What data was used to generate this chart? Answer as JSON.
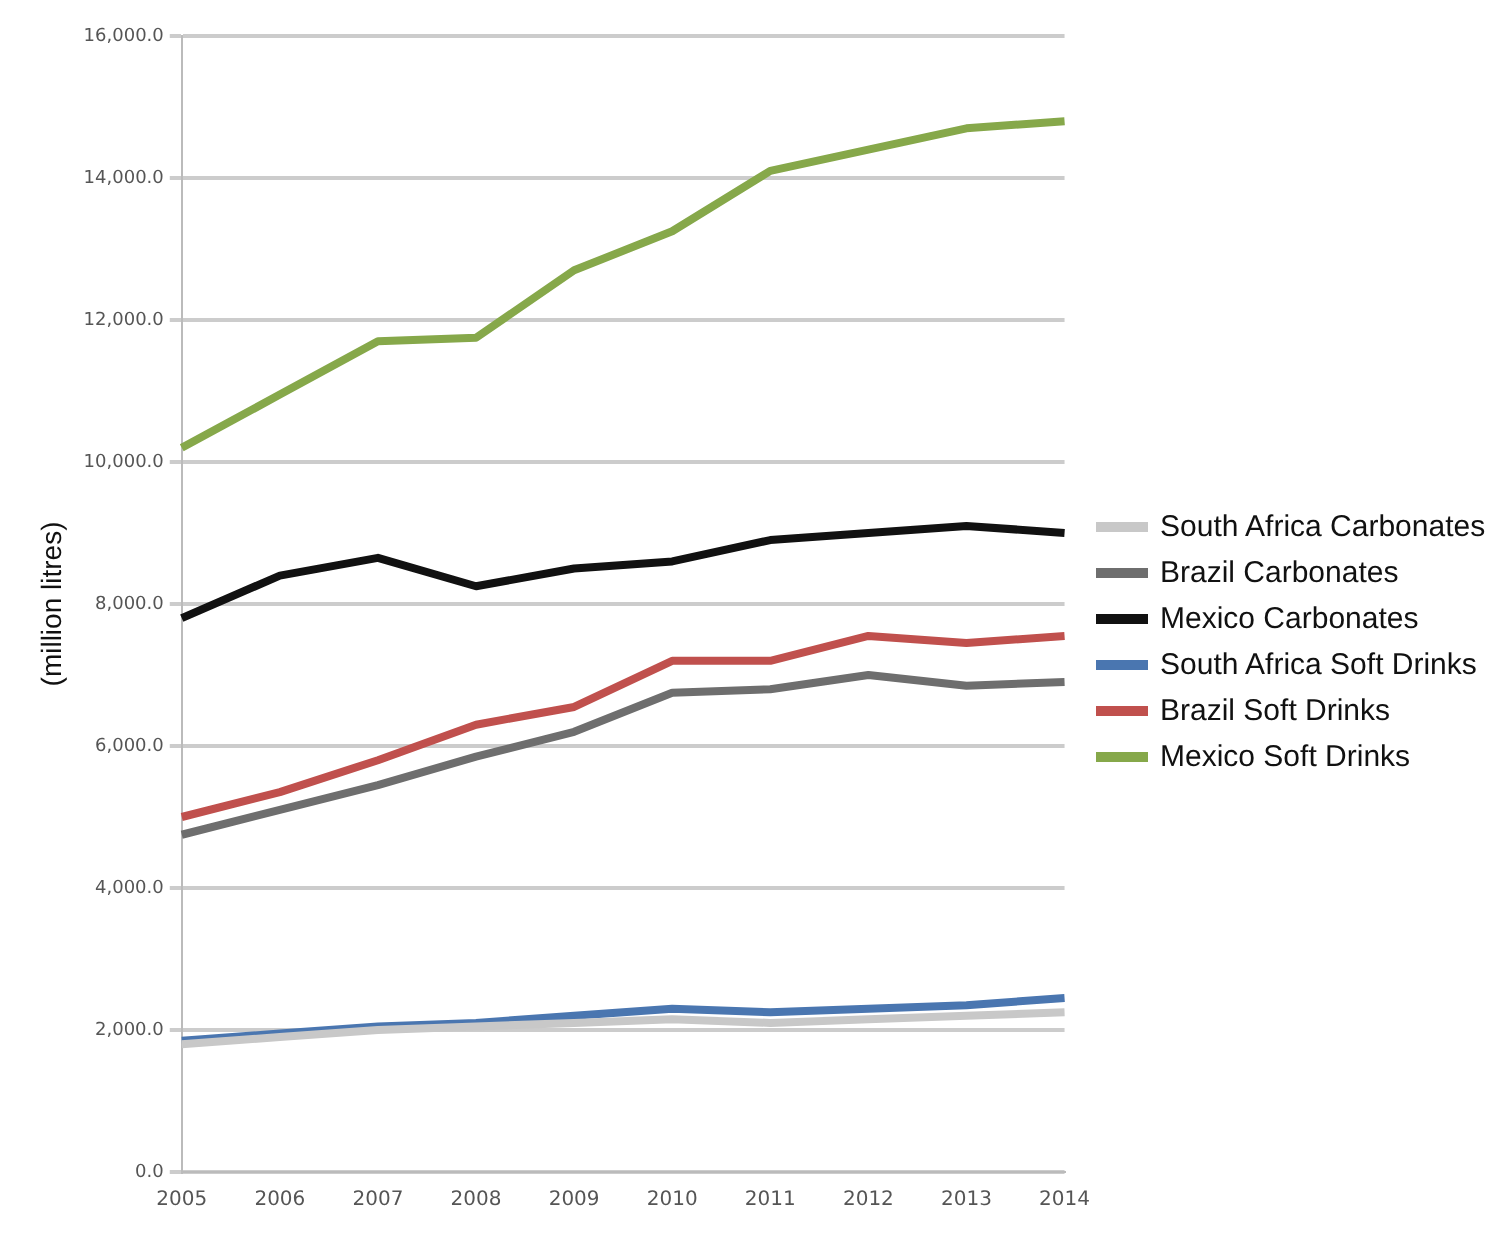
{
  "chart_data": {
    "type": "line",
    "ylabel": "(million litres)",
    "categories": [
      "2005",
      "2006",
      "2007",
      "2008",
      "2009",
      "2010",
      "2011",
      "2012",
      "2013",
      "2014"
    ],
    "series": [
      {
        "name": "South Africa Carbonates",
        "color": "#c8c8c8",
        "values": [
          1800,
          1900,
          2000,
          2050,
          2100,
          2150,
          2100,
          2150,
          2200,
          2250
        ]
      },
      {
        "name": "Brazil Carbonates",
        "color": "#6e6e6e",
        "values": [
          4750,
          5100,
          5450,
          5850,
          6200,
          6750,
          6800,
          7000,
          6850,
          6900
        ]
      },
      {
        "name": "Mexico Carbonates",
        "color": "#111111",
        "values": [
          7800,
          8400,
          8650,
          8250,
          8500,
          8600,
          8900,
          9000,
          9100,
          9000
        ]
      },
      {
        "name": "South Africa Soft Drinks",
        "color": "#4a76b0",
        "values": [
          1850,
          1950,
          2050,
          2100,
          2200,
          2300,
          2250,
          2300,
          2350,
          2450
        ]
      },
      {
        "name": "Brazil Soft Drinks",
        "color": "#c0504d",
        "values": [
          5000,
          5350,
          5800,
          6300,
          6550,
          7200,
          7200,
          7550,
          7450,
          7550
        ]
      },
      {
        "name": "Mexico Soft Drinks",
        "color": "#86a84a",
        "values": [
          10200,
          10950,
          11700,
          11750,
          12700,
          13250,
          14100,
          14400,
          14700,
          14800
        ]
      }
    ],
    "ylim": [
      0,
      16000
    ],
    "yticks": [
      {
        "value": 0,
        "label": "0.0"
      },
      {
        "value": 2000,
        "label": "2,000.0"
      },
      {
        "value": 4000,
        "label": "4,000.0"
      },
      {
        "value": 6000,
        "label": "6,000.0"
      },
      {
        "value": 8000,
        "label": "8,000.0"
      },
      {
        "value": 10000,
        "label": "10,000.0"
      },
      {
        "value": 12000,
        "label": "12,000.0"
      },
      {
        "value": 14000,
        "label": "14,000.0"
      },
      {
        "value": 16000,
        "label": "16,000.0"
      }
    ],
    "grid": "y",
    "legend": "right",
    "marker": "none",
    "line_style": "solid"
  }
}
